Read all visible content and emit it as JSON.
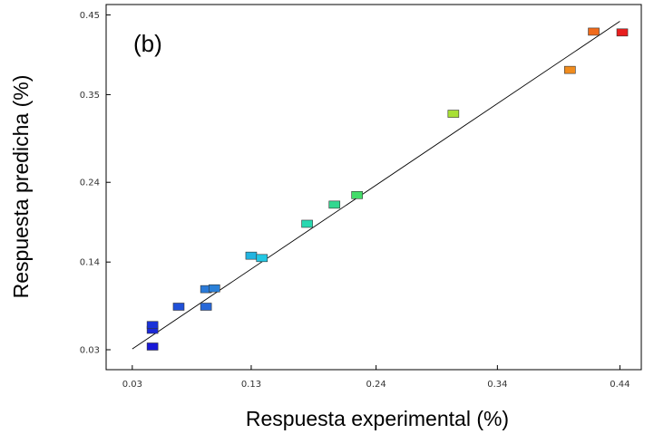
{
  "chart_data": {
    "type": "scatter",
    "panel_label": "(b)",
    "xlabel": "Respuesta experimental (%)",
    "ylabel": "Respuesta predicha (%)",
    "xlim": [
      0.008,
      0.458
    ],
    "ylim": [
      0.005,
      0.463
    ],
    "x_ticks": [
      {
        "value": 0.03,
        "label": "0.03"
      },
      {
        "value": 0.13,
        "label": "0.13"
      },
      {
        "value": 0.235,
        "label": "0.24"
      },
      {
        "value": 0.337,
        "label": "0.34"
      },
      {
        "value": 0.44,
        "label": "0.44"
      }
    ],
    "y_ticks": [
      {
        "value": 0.03,
        "label": "0.03"
      },
      {
        "value": 0.14,
        "label": "0.14"
      },
      {
        "value": 0.24,
        "label": "0.24"
      },
      {
        "value": 0.35,
        "label": "0.35"
      },
      {
        "value": 0.45,
        "label": "0.45"
      }
    ],
    "fit_line": {
      "x": [
        0.03,
        0.44
      ],
      "y": [
        0.031,
        0.442
      ]
    },
    "grid": false,
    "points": [
      {
        "x": 0.047,
        "y": 0.034,
        "color": "#1a1ad8"
      },
      {
        "x": 0.047,
        "y": 0.055,
        "color": "#1a28d8"
      },
      {
        "x": 0.047,
        "y": 0.061,
        "color": "#1a32d8"
      },
      {
        "x": 0.069,
        "y": 0.084,
        "color": "#2050d8"
      },
      {
        "x": 0.092,
        "y": 0.084,
        "color": "#2868d8"
      },
      {
        "x": 0.092,
        "y": 0.106,
        "color": "#2a7ad8"
      },
      {
        "x": 0.099,
        "y": 0.107,
        "color": "#2a80d8"
      },
      {
        "x": 0.13,
        "y": 0.148,
        "color": "#22b4e0"
      },
      {
        "x": 0.139,
        "y": 0.145,
        "color": "#22c8e4"
      },
      {
        "x": 0.177,
        "y": 0.188,
        "color": "#28d8b0"
      },
      {
        "x": 0.2,
        "y": 0.212,
        "color": "#32d890"
      },
      {
        "x": 0.219,
        "y": 0.224,
        "color": "#44dc6a"
      },
      {
        "x": 0.3,
        "y": 0.326,
        "color": "#a8e034"
      },
      {
        "x": 0.398,
        "y": 0.381,
        "color": "#f08c1e"
      },
      {
        "x": 0.418,
        "y": 0.429,
        "color": "#f06a1a"
      },
      {
        "x": 0.442,
        "y": 0.428,
        "color": "#e81e1e"
      }
    ]
  }
}
